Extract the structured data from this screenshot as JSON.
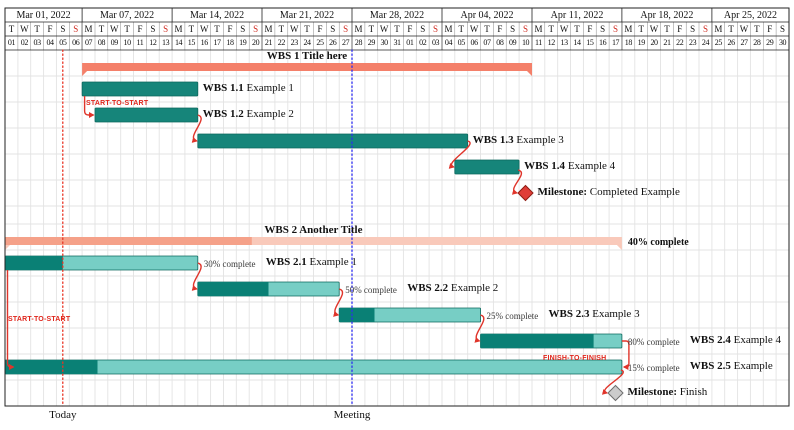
{
  "title": "Project Gantt chart, Mar 01 2022 - Apr 30 2022",
  "chart_data": {
    "type": "gantt",
    "date_range": {
      "start": "2022-03-01",
      "end": "2022-04-30"
    },
    "calendar": {
      "weeks": [
        {
          "label": "Mar 01, 2022",
          "days": 6
        },
        {
          "label": "Mar 07, 2022",
          "days": 7
        },
        {
          "label": "Mar 14, 2022",
          "days": 7
        },
        {
          "label": "Mar 21, 2022",
          "days": 7
        },
        {
          "label": "Mar 28, 2022",
          "days": 7
        },
        {
          "label": "Apr 04, 2022",
          "days": 7
        },
        {
          "label": "Apr 11, 2022",
          "days": 7
        },
        {
          "label": "Apr 18, 2022",
          "days": 7
        },
        {
          "label": "Apr 25, 2022",
          "days": 6
        }
      ],
      "day_letters": [
        "T",
        "W",
        "T",
        "F",
        "S",
        "S",
        "M",
        "T",
        "W",
        "T",
        "F",
        "S",
        "S",
        "M",
        "T",
        "W",
        "T",
        "F",
        "S",
        "S",
        "M",
        "T",
        "W",
        "T",
        "F",
        "S",
        "S",
        "M",
        "T",
        "W",
        "T",
        "F",
        "S",
        "S",
        "M",
        "T",
        "W",
        "T",
        "F",
        "S",
        "S",
        "M",
        "T",
        "W",
        "T",
        "F",
        "S",
        "S",
        "M",
        "T",
        "W",
        "T",
        "F",
        "S",
        "S",
        "M",
        "T",
        "W",
        "T",
        "F",
        "S"
      ],
      "day_numbers": [
        "01",
        "02",
        "03",
        "04",
        "05",
        "06",
        "07",
        "08",
        "09",
        "10",
        "11",
        "12",
        "13",
        "14",
        "15",
        "16",
        "17",
        "18",
        "19",
        "20",
        "21",
        "22",
        "23",
        "24",
        "25",
        "26",
        "27",
        "28",
        "29",
        "30",
        "31",
        "01",
        "02",
        "03",
        "04",
        "05",
        "06",
        "07",
        "08",
        "09",
        "10",
        "11",
        "12",
        "13",
        "14",
        "15",
        "16",
        "17",
        "18",
        "19",
        "20",
        "21",
        "22",
        "23",
        "24",
        "25",
        "26",
        "27",
        "28",
        "29",
        "30"
      ],
      "sundays": [
        5,
        12,
        19,
        26,
        33,
        40,
        47,
        54
      ]
    },
    "rows": [
      {
        "id": "g1",
        "kind": "group",
        "title": "WBS 1 Title here",
        "start": 6,
        "end": 40,
        "start_date": "2022-03-07",
        "end_date": "2022-04-10"
      },
      {
        "id": "t11",
        "kind": "task",
        "wbs": "WBS 1.1",
        "desc": "Example 1",
        "start": 6,
        "end": 14,
        "start_date": "2022-03-07",
        "end_date": "2022-03-15"
      },
      {
        "id": "t12",
        "kind": "task",
        "wbs": "WBS 1.2",
        "desc": "Example 2",
        "start": 7,
        "end": 14,
        "start_date": "2022-03-08",
        "end_date": "2022-03-15"
      },
      {
        "id": "t13",
        "kind": "task",
        "wbs": "WBS 1.3",
        "desc": "Example 3",
        "start": 15,
        "end": 35,
        "start_date": "2022-03-16",
        "end_date": "2022-04-05"
      },
      {
        "id": "t14",
        "kind": "task",
        "wbs": "WBS 1.4",
        "desc": "Example 4",
        "start": 35,
        "end": 39,
        "start_date": "2022-04-05",
        "end_date": "2022-04-09"
      },
      {
        "id": "m1",
        "kind": "milestone",
        "wbs": "Milestone:",
        "desc": "Completed Example",
        "day": 40,
        "date": "2022-04-10",
        "variant": "completed"
      },
      {
        "kind": "spacer"
      },
      {
        "id": "g2",
        "kind": "group",
        "title": "WBS 2 Another Title",
        "start": 0,
        "end": 47,
        "progress": 40,
        "progress_label": "40% complete",
        "start_date": "2022-03-01",
        "end_date": "2022-04-17"
      },
      {
        "id": "t21",
        "kind": "ptask",
        "wbs": "WBS 2.1",
        "desc": "Example 1",
        "start": 0,
        "end": 14,
        "progress": 30,
        "progress_label": "30% complete",
        "start_date": "2022-03-01",
        "end_date": "2022-03-15"
      },
      {
        "id": "t22",
        "kind": "ptask",
        "wbs": "WBS 2.2",
        "desc": "Example 2",
        "start": 15,
        "end": 25,
        "progress": 50,
        "progress_label": "50% complete",
        "start_date": "2022-03-16",
        "end_date": "2022-03-26"
      },
      {
        "id": "t23",
        "kind": "ptask",
        "wbs": "WBS 2.3",
        "desc": "Example 3",
        "start": 26,
        "end": 36,
        "progress": 25,
        "progress_label": "25% complete",
        "start_date": "2022-03-27",
        "end_date": "2022-04-06"
      },
      {
        "id": "t24",
        "kind": "ptask",
        "wbs": "WBS 2.4",
        "desc": "Example 4",
        "start": 37,
        "end": 47,
        "progress": 80,
        "progress_label": "80% complete",
        "start_date": "2022-04-07",
        "end_date": "2022-04-17"
      },
      {
        "id": "t25",
        "kind": "ptask",
        "wbs": "WBS 2.5",
        "desc": "Example",
        "start": 0,
        "end": 47,
        "progress": 15,
        "progress_label": "15% complete",
        "start_date": "2022-03-01",
        "end_date": "2022-04-17"
      },
      {
        "id": "m2",
        "kind": "milestone",
        "wbs": "Milestone:",
        "desc": "Finish",
        "day": 47,
        "date": "2022-04-17",
        "variant": "finish"
      }
    ],
    "links": [
      {
        "type": "start-to-start",
        "from": "t11",
        "to": "t12",
        "label": "START-TO-START",
        "label_x": 86,
        "label_y": 100
      },
      {
        "type": "end-to-start",
        "from": "t12",
        "to": "t13"
      },
      {
        "type": "end-to-start",
        "from": "t13",
        "to": "t14"
      },
      {
        "type": "end-to-milestone",
        "from": "t14",
        "to": "m1"
      },
      {
        "type": "end-to-start",
        "from": "t21",
        "to": "t22"
      },
      {
        "type": "start-to-start",
        "from": "t21",
        "to": "t25",
        "label": "START-TO-START",
        "label_x": 8,
        "label_y": 316
      },
      {
        "type": "end-to-start",
        "from": "t22",
        "to": "t23"
      },
      {
        "type": "end-to-start",
        "from": "t23",
        "to": "t24"
      },
      {
        "type": "finish-to-finish",
        "from": "t24",
        "to": "t25",
        "label": "FINISH-TO-FINISH",
        "label_x": 543,
        "label_y": 355
      },
      {
        "type": "end-to-milestone",
        "from": "t25",
        "to": "m2"
      }
    ],
    "vrules": [
      {
        "id": "today",
        "label": "Today",
        "position_day": 4.5,
        "date": "2022-03-05",
        "color": "#e93323"
      },
      {
        "id": "meeting",
        "label": "Meeting",
        "position_day": 27,
        "date": "2022-03-28",
        "color": "#2d2df0"
      }
    ],
    "colors": {
      "group1_bar": "#f4806a",
      "group2_done": "#f5a189",
      "group2_rest": "#f9c9ba",
      "task_bar": "#16857a",
      "task_stroke": "#0d685d",
      "progress_done": "#0a8075",
      "progress_rest": "#77cec5",
      "link": "#e0352b",
      "milestone_completed": "#e03e38",
      "milestone_completed_stroke": "#8f1d14",
      "milestone_finish": "#cccccc",
      "milestone_finish_stroke": "#6f6f6f",
      "sunday": "#d02b20",
      "grid": "#e3e3e3",
      "frame": "#222222"
    }
  }
}
